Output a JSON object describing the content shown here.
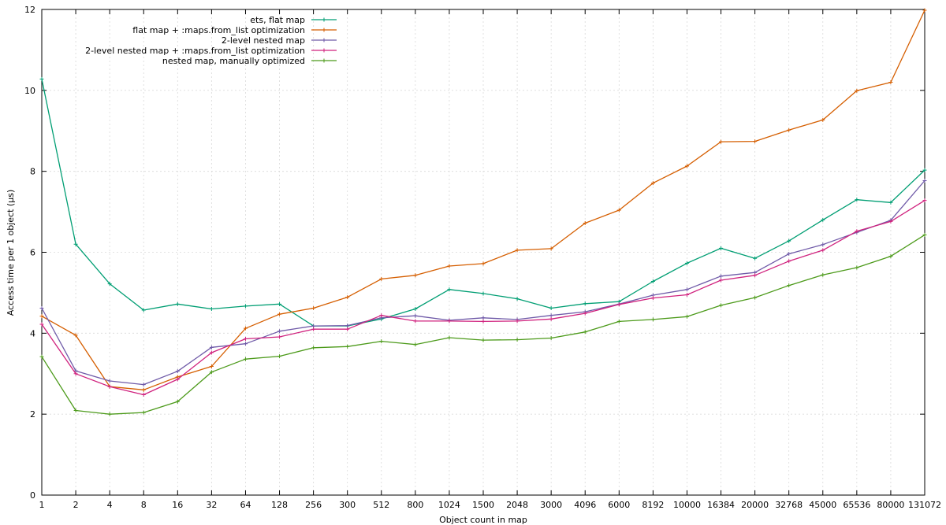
{
  "chart_data": {
    "type": "line",
    "title": "",
    "xlabel": "Object count in map",
    "ylabel": "Access time per 1 object (μs)",
    "ylim": [
      0,
      12
    ],
    "yticks": [
      0,
      2,
      4,
      6,
      8,
      10,
      12
    ],
    "grid": true,
    "legend_position": "top-right",
    "categories": [
      "1",
      "2",
      "4",
      "8",
      "16",
      "32",
      "64",
      "128",
      "256",
      "300",
      "512",
      "800",
      "1024",
      "1500",
      "2048",
      "3000",
      "4096",
      "6000",
      "8192",
      "10000",
      "16384",
      "20000",
      "32768",
      "45000",
      "65536",
      "80000",
      "131072"
    ],
    "series": [
      {
        "name": "ets, flat map",
        "color": "#009e73",
        "values": [
          10.28,
          6.2,
          5.22,
          4.57,
          4.72,
          4.6,
          4.67,
          4.72,
          4.18,
          4.18,
          4.35,
          4.6,
          5.08,
          4.98,
          4.85,
          4.62,
          4.73,
          4.78,
          5.28,
          5.73,
          6.1,
          5.85,
          6.28,
          6.8,
          7.3,
          7.23,
          8.03
        ]
      },
      {
        "name": "flat map + :maps.from_list optimization",
        "color": "#d55e00",
        "values": [
          4.42,
          3.95,
          2.68,
          2.6,
          2.92,
          3.18,
          4.12,
          4.47,
          4.62,
          4.89,
          5.34,
          5.43,
          5.66,
          5.72,
          6.05,
          6.09,
          6.72,
          7.04,
          7.71,
          8.13,
          8.73,
          8.74,
          9.02,
          9.27,
          9.99,
          10.2,
          11.98
        ]
      },
      {
        "name": "2-level nested map",
        "color": "#6f5aa8",
        "values": [
          4.62,
          3.07,
          2.82,
          2.73,
          3.06,
          3.65,
          3.74,
          4.05,
          4.18,
          4.19,
          4.38,
          4.43,
          4.32,
          4.38,
          4.34,
          4.44,
          4.53,
          4.72,
          4.94,
          5.08,
          5.41,
          5.5,
          5.96,
          6.19,
          6.49,
          6.79,
          7.77
        ]
      },
      {
        "name": "2-level nested map + :maps.from_list optimization",
        "color": "#d0227e",
        "values": [
          4.22,
          3.0,
          2.68,
          2.48,
          2.86,
          3.52,
          3.86,
          3.91,
          4.1,
          4.1,
          4.44,
          4.3,
          4.3,
          4.29,
          4.3,
          4.35,
          4.49,
          4.71,
          4.87,
          4.95,
          5.31,
          5.43,
          5.78,
          6.05,
          6.52,
          6.76,
          7.28
        ]
      },
      {
        "name": "nested map, manually optimized",
        "color": "#4c9a1a",
        "values": [
          3.42,
          2.09,
          2.0,
          2.04,
          2.31,
          3.04,
          3.36,
          3.43,
          3.64,
          3.67,
          3.8,
          3.72,
          3.89,
          3.83,
          3.84,
          3.88,
          4.03,
          4.29,
          4.34,
          4.41,
          4.69,
          4.88,
          5.18,
          5.44,
          5.62,
          5.9,
          6.43
        ]
      }
    ]
  }
}
